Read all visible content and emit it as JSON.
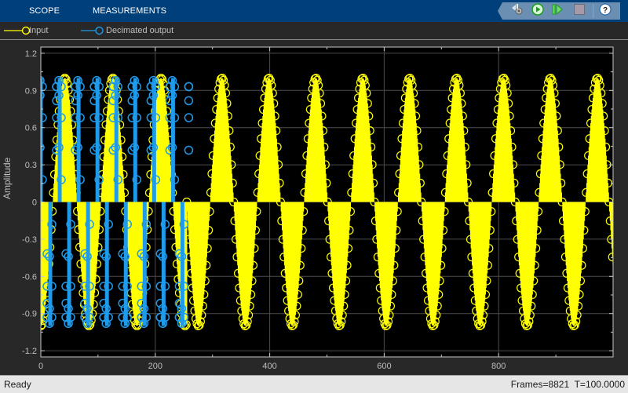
{
  "toolstrip": {
    "tabs": [
      {
        "label": "SCOPE"
      },
      {
        "label": "MEASUREMENTS"
      }
    ],
    "quick_access": [
      {
        "name": "settings-icon",
        "tooltip": "Configuration"
      },
      {
        "name": "run-icon",
        "tooltip": "Run"
      },
      {
        "name": "step-forward-icon",
        "tooltip": "Step Forward"
      },
      {
        "name": "stop-icon",
        "tooltip": "Stop"
      },
      {
        "name": "help-icon",
        "tooltip": "Help"
      }
    ],
    "colors": {
      "toolstrip_bg": "#00407a",
      "quick_access_bg": "#6a8fb3"
    }
  },
  "legend": {
    "items": [
      {
        "label": "Input",
        "color": "#ffff00"
      },
      {
        "label": "Decimated output",
        "color": "#1f9bec"
      }
    ]
  },
  "plot": {
    "ylabel": "Amplitude",
    "background": "#000000",
    "frame_color": "#c8c8c8",
    "grid_color": "#4d4d4d",
    "tick_label_color": "#bdbdbd"
  },
  "chart_data": {
    "type": "scatter",
    "title": "",
    "xlabel": "",
    "ylabel": "Amplitude",
    "xlim": [
      0,
      1000
    ],
    "ylim": [
      -1.25,
      1.25
    ],
    "xticks": [
      0,
      200,
      400,
      600,
      800
    ],
    "yticks": [
      -1.2,
      -0.9,
      -0.6,
      -0.3,
      0,
      0.3,
      0.6,
      0.9,
      1.2
    ],
    "grid": true,
    "legend_position": "top-left, outside",
    "series": [
      {
        "name": "Input",
        "color": "#ffff00",
        "style": "stem with circle markers",
        "segments": [
          {
            "x_start": 0,
            "x_end": 255,
            "amplitude": 1.0,
            "period_samples": 84,
            "phase_deg": -90,
            "note": "fast sine overlaid with decimated output"
          },
          {
            "x_start": 255,
            "x_end": 1000,
            "amplitude": 1.0,
            "period_samples": 82,
            "phase_deg": 180
          }
        ]
      },
      {
        "name": "Decimated output",
        "color": "#1f9bec",
        "style": "stem with circle markers",
        "x_range": [
          0,
          250
        ],
        "stem_spacing_samples": 16.5,
        "amplitude": 1.0,
        "note": "dense stems alternating between ~+1 and ~-1"
      }
    ]
  },
  "status": {
    "left": "Ready",
    "right": "Frames=8821  T=100.0000"
  }
}
